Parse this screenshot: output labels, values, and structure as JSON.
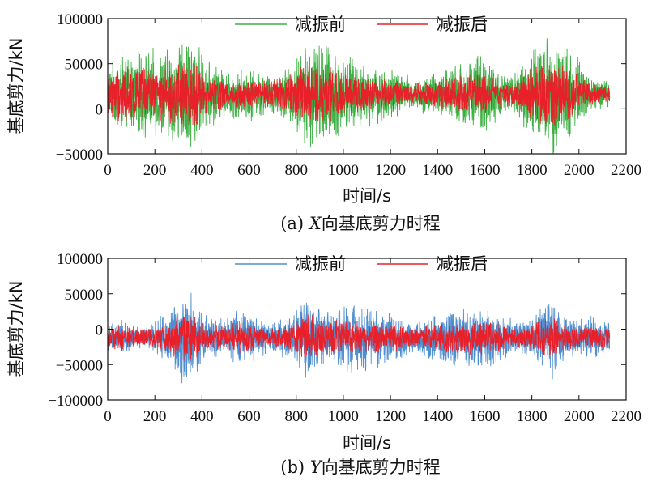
{
  "chart_data": [
    {
      "type": "line",
      "caption_prefix": "(a) ",
      "caption_var": "X",
      "caption_text": "向基底剪力时程",
      "xlabel": "时间/s",
      "ylabel": "基底剪力/kN",
      "xlim": [
        0,
        2200
      ],
      "ylim": [
        -50000,
        100000
      ],
      "xticks": [
        0,
        200,
        400,
        600,
        800,
        1000,
        1200,
        1400,
        1600,
        1800,
        2000,
        2200
      ],
      "yticks": [
        -50000,
        0,
        50000,
        100000
      ],
      "duration": 2130,
      "grid": false,
      "legend_position": "top",
      "series": [
        {
          "name": "减振前",
          "color": "#3cb043",
          "mean": 16000,
          "envelope": [
            [
              0,
              22000
            ],
            [
              50,
              36000
            ],
            [
              120,
              38000
            ],
            [
              200,
              40000
            ],
            [
              300,
              45000
            ],
            [
              360,
              55000
            ],
            [
              420,
              30000
            ],
            [
              500,
              22000
            ],
            [
              600,
              24000
            ],
            [
              700,
              18000
            ],
            [
              780,
              28000
            ],
            [
              850,
              48000
            ],
            [
              920,
              50000
            ],
            [
              1000,
              35000
            ],
            [
              1100,
              28000
            ],
            [
              1200,
              25000
            ],
            [
              1300,
              15000
            ],
            [
              1400,
              20000
            ],
            [
              1480,
              28000
            ],
            [
              1580,
              40000
            ],
            [
              1650,
              24000
            ],
            [
              1720,
              18000
            ],
            [
              1800,
              45000
            ],
            [
              1900,
              55000
            ],
            [
              1980,
              38000
            ],
            [
              2050,
              18000
            ],
            [
              2130,
              12000
            ]
          ]
        },
        {
          "name": "减振后",
          "color": "#e8202a",
          "mean": 16000,
          "envelope": [
            [
              0,
              18000
            ],
            [
              50,
              28000
            ],
            [
              120,
              24000
            ],
            [
              200,
              22000
            ],
            [
              300,
              28000
            ],
            [
              360,
              32000
            ],
            [
              420,
              18000
            ],
            [
              500,
              14000
            ],
            [
              600,
              14000
            ],
            [
              700,
              12000
            ],
            [
              780,
              18000
            ],
            [
              850,
              30000
            ],
            [
              920,
              26000
            ],
            [
              1000,
              22000
            ],
            [
              1100,
              16000
            ],
            [
              1200,
              14000
            ],
            [
              1300,
              10000
            ],
            [
              1400,
              12000
            ],
            [
              1480,
              16000
            ],
            [
              1580,
              20000
            ],
            [
              1650,
              14000
            ],
            [
              1720,
              10000
            ],
            [
              1800,
              26000
            ],
            [
              1900,
              30000
            ],
            [
              1980,
              20000
            ],
            [
              2050,
              10000
            ],
            [
              2130,
              8000
            ]
          ]
        }
      ]
    },
    {
      "type": "line",
      "caption_prefix": "(b) ",
      "caption_var": "Y",
      "caption_text": "向基底剪力时程",
      "xlabel": "时间/s",
      "ylabel": "基底剪力/kN",
      "xlim": [
        0,
        2200
      ],
      "ylim": [
        -100000,
        100000
      ],
      "xticks": [
        0,
        200,
        400,
        600,
        800,
        1000,
        1200,
        1400,
        1600,
        1800,
        2000,
        2200
      ],
      "yticks": [
        -100000,
        -50000,
        0,
        50000,
        100000
      ],
      "duration": 2130,
      "grid": false,
      "legend_position": "top",
      "series": [
        {
          "name": "减振前",
          "color": "#4f8fd0",
          "mean": -12000,
          "envelope": [
            [
              0,
              15000
            ],
            [
              50,
              22000
            ],
            [
              120,
              12000
            ],
            [
              200,
              18000
            ],
            [
              280,
              40000
            ],
            [
              340,
              58000
            ],
            [
              400,
              30000
            ],
            [
              500,
              22000
            ],
            [
              560,
              34000
            ],
            [
              620,
              26000
            ],
            [
              700,
              18000
            ],
            [
              780,
              28000
            ],
            [
              850,
              52000
            ],
            [
              920,
              28000
            ],
            [
              1000,
              40000
            ],
            [
              1100,
              38000
            ],
            [
              1200,
              28000
            ],
            [
              1300,
              18000
            ],
            [
              1400,
              30000
            ],
            [
              1500,
              38000
            ],
            [
              1600,
              36000
            ],
            [
              1680,
              26000
            ],
            [
              1750,
              20000
            ],
            [
              1800,
              22000
            ],
            [
              1880,
              52000
            ],
            [
              1950,
              22000
            ],
            [
              2050,
              24000
            ],
            [
              2130,
              20000
            ]
          ]
        },
        {
          "name": "减振后",
          "color": "#e8202a",
          "mean": -12000,
          "envelope": [
            [
              0,
              12000
            ],
            [
              50,
              16000
            ],
            [
              120,
              10000
            ],
            [
              200,
              12000
            ],
            [
              280,
              22000
            ],
            [
              340,
              30000
            ],
            [
              400,
              18000
            ],
            [
              500,
              14000
            ],
            [
              560,
              18000
            ],
            [
              620,
              14000
            ],
            [
              700,
              12000
            ],
            [
              780,
              16000
            ],
            [
              850,
              30000
            ],
            [
              920,
              18000
            ],
            [
              1000,
              22000
            ],
            [
              1100,
              20000
            ],
            [
              1200,
              16000
            ],
            [
              1300,
              12000
            ],
            [
              1400,
              18000
            ],
            [
              1500,
              22000
            ],
            [
              1600,
              20000
            ],
            [
              1680,
              16000
            ],
            [
              1750,
              12000
            ],
            [
              1800,
              14000
            ],
            [
              1880,
              26000
            ],
            [
              1950,
              14000
            ],
            [
              2050,
              14000
            ],
            [
              2130,
              12000
            ]
          ]
        }
      ]
    }
  ]
}
